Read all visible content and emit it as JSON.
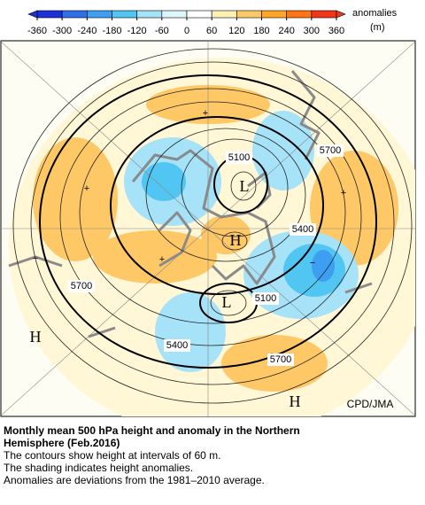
{
  "colorbar": {
    "title": "anomalies",
    "unit": "(m)",
    "ticks": [
      -360,
      -300,
      -240,
      -180,
      -120,
      -60,
      0,
      60,
      120,
      180,
      240,
      300,
      360
    ],
    "colors": [
      "#1f2fd8",
      "#2f6ee8",
      "#3e9ff2",
      "#52c6f2",
      "#a6e2f8",
      "#ddf5fc",
      "#ffffff",
      "#fff1b4",
      "#ffc867",
      "#ffa628",
      "#ff7414",
      "#f2361a"
    ]
  },
  "map": {
    "contour_labels": [
      "5100",
      "5700",
      "5400",
      "5700",
      "5100",
      "5400",
      "5700"
    ],
    "centers": [
      "H",
      "H",
      "H",
      "L",
      "L"
    ],
    "credit": "CPD/JMA"
  },
  "caption": {
    "title_lines": [
      "Monthly mean 500 hPa height and anomaly in the Northern",
      "Hemisphere (Feb.2016)"
    ],
    "lines": [
      "The contours show height at intervals of 60 m.",
      "The shading indicates height anomalies.",
      "Anomalies are deviations from the 1981–2010 average."
    ]
  }
}
